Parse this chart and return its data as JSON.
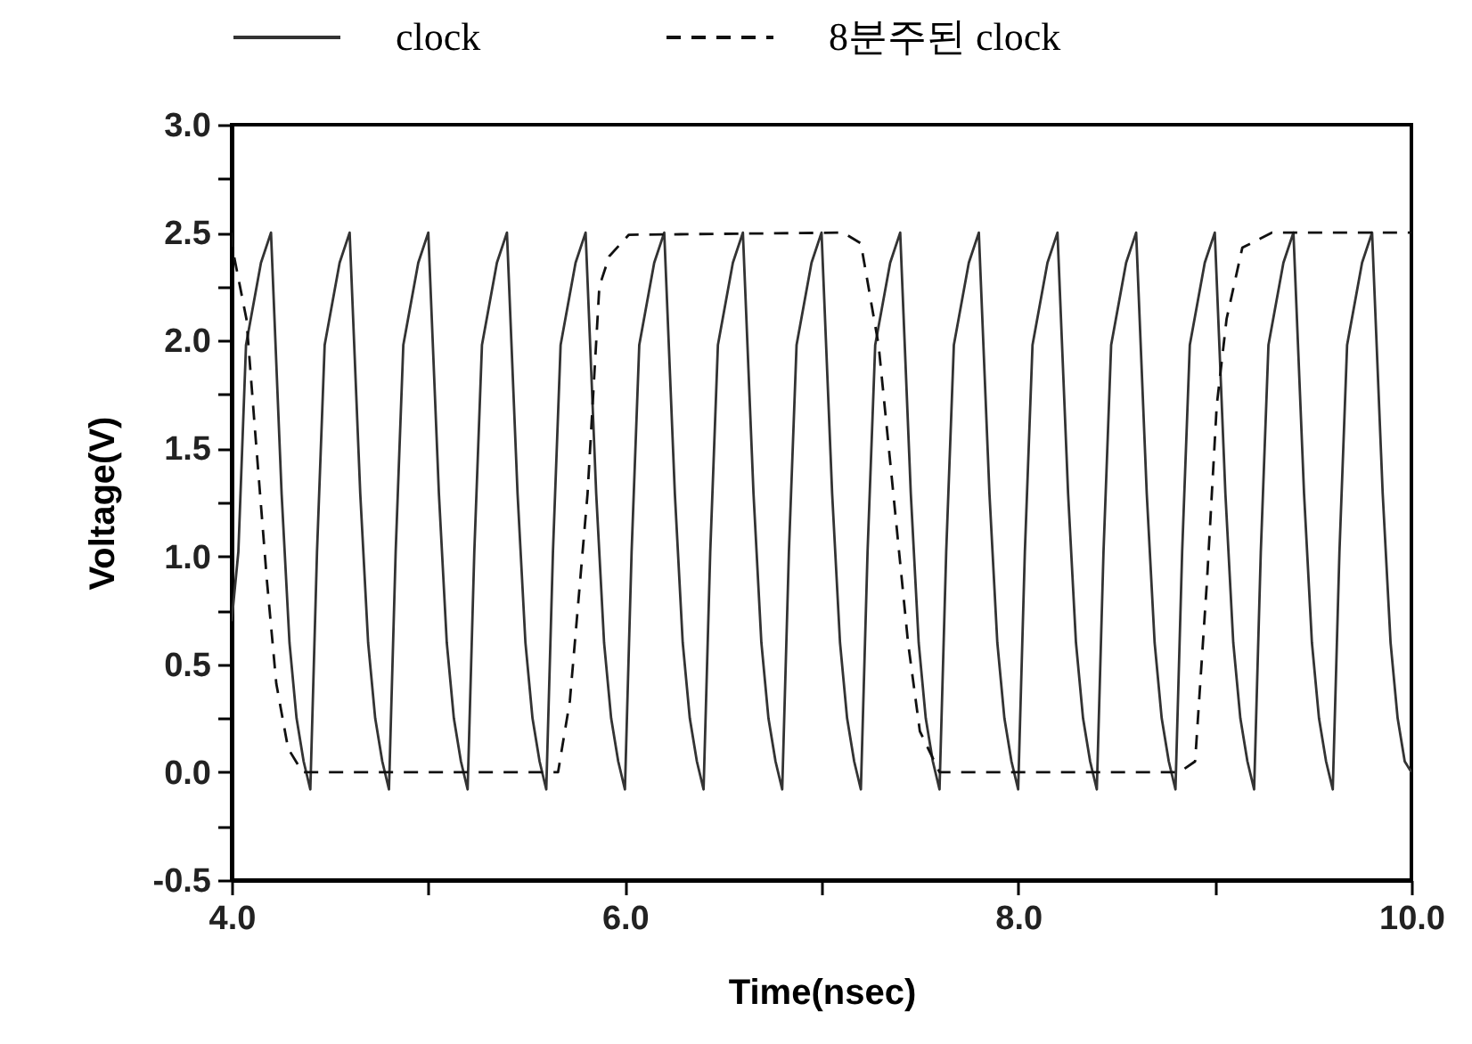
{
  "chart_data": {
    "type": "line",
    "xlabel": "Time(nsec)",
    "ylabel": "Voltage(V)",
    "legend": "top",
    "grid": false,
    "xlim": [
      4,
      10
    ],
    "ylim": [
      -0.5,
      3
    ],
    "xticks": [
      {
        "value": 4,
        "label": "4.0"
      },
      {
        "value": 5,
        "label": null
      },
      {
        "value": 6,
        "label": "6.0"
      },
      {
        "value": 7,
        "label": null
      },
      {
        "value": 8,
        "label": "8.0"
      },
      {
        "value": 9,
        "label": null
      },
      {
        "value": 10,
        "label": "10.0"
      }
    ],
    "yticks": [
      {
        "value": -0.5,
        "label": "-0.5"
      },
      {
        "value": -0.25,
        "label": null
      },
      {
        "value": 0,
        "label": "0.0"
      },
      {
        "value": 0.25,
        "label": null
      },
      {
        "value": 0.5,
        "label": "0.5"
      },
      {
        "value": 0.75,
        "label": null
      },
      {
        "value": 1,
        "label": "1.0"
      },
      {
        "value": 1.25,
        "label": null
      },
      {
        "value": 1.5,
        "label": "1.5"
      },
      {
        "value": 1.75,
        "label": null
      },
      {
        "value": 2,
        "label": "2.0"
      },
      {
        "value": 2.25,
        "label": null
      },
      {
        "value": 2.5,
        "label": "2.5"
      },
      {
        "value": 2.75,
        "label": null
      },
      {
        "value": 3,
        "label": "3.0"
      }
    ],
    "series": [
      {
        "name": "clock",
        "color": "#333333",
        "line_style": "solid",
        "x": [
          4.0,
          4.034,
          4.073,
          4.149,
          4.2,
          4.254,
          4.294,
          4.33,
          4.366,
          4.4,
          4.434,
          4.473,
          4.549,
          4.6,
          4.654,
          4.694,
          4.73,
          4.766,
          4.8,
          4.834,
          4.873,
          4.949,
          5.0,
          5.054,
          5.094,
          5.13,
          5.166,
          5.2,
          5.234,
          5.273,
          5.349,
          5.4,
          5.454,
          5.494,
          5.53,
          5.566,
          5.6,
          5.634,
          5.673,
          5.749,
          5.8,
          5.854,
          5.894,
          5.93,
          5.966,
          6.0,
          6.034,
          6.073,
          6.149,
          6.2,
          6.254,
          6.294,
          6.33,
          6.366,
          6.4,
          6.434,
          6.473,
          6.549,
          6.6,
          6.654,
          6.694,
          6.73,
          6.766,
          6.8,
          6.834,
          6.873,
          6.949,
          7.0,
          7.054,
          7.094,
          7.13,
          7.166,
          7.2,
          7.234,
          7.273,
          7.349,
          7.4,
          7.454,
          7.494,
          7.53,
          7.566,
          7.6,
          7.634,
          7.673,
          7.749,
          7.8,
          7.854,
          7.894,
          7.93,
          7.966,
          8.0,
          8.034,
          8.073,
          8.149,
          8.2,
          8.254,
          8.294,
          8.33,
          8.366,
          8.4,
          8.434,
          8.473,
          8.549,
          8.6,
          8.654,
          8.694,
          8.73,
          8.766,
          8.8,
          8.834,
          8.873,
          8.949,
          9.0,
          9.054,
          9.094,
          9.13,
          9.166,
          9.2,
          9.234,
          9.273,
          9.349,
          9.4,
          9.454,
          9.494,
          9.53,
          9.566,
          9.6,
          9.634,
          9.673,
          9.749,
          9.8,
          9.854,
          9.894,
          9.93,
          9.966,
          10.0
        ],
        "values": [
          0.7,
          1.02,
          1.98,
          2.36,
          2.5,
          1.29,
          0.6,
          0.25,
          0.05,
          -0.08,
          1.02,
          1.98,
          2.36,
          2.5,
          1.29,
          0.6,
          0.25,
          0.05,
          -0.08,
          1.02,
          1.98,
          2.36,
          2.5,
          1.29,
          0.6,
          0.25,
          0.05,
          -0.08,
          1.02,
          1.98,
          2.36,
          2.5,
          1.29,
          0.6,
          0.25,
          0.05,
          -0.08,
          1.02,
          1.98,
          2.36,
          2.5,
          1.29,
          0.6,
          0.25,
          0.05,
          -0.08,
          1.02,
          1.98,
          2.36,
          2.5,
          1.29,
          0.6,
          0.25,
          0.05,
          -0.08,
          1.02,
          1.98,
          2.36,
          2.5,
          1.29,
          0.6,
          0.25,
          0.05,
          -0.08,
          1.02,
          1.98,
          2.36,
          2.5,
          1.29,
          0.6,
          0.25,
          0.05,
          -0.08,
          1.02,
          1.98,
          2.36,
          2.5,
          1.29,
          0.6,
          0.25,
          0.05,
          -0.08,
          1.02,
          1.98,
          2.36,
          2.5,
          1.29,
          0.6,
          0.25,
          0.05,
          -0.08,
          1.02,
          1.98,
          2.36,
          2.5,
          1.29,
          0.6,
          0.25,
          0.05,
          -0.08,
          1.02,
          1.98,
          2.36,
          2.5,
          1.29,
          0.6,
          0.25,
          0.05,
          -0.08,
          1.02,
          1.98,
          2.36,
          2.5,
          1.29,
          0.6,
          0.25,
          0.05,
          -0.08,
          1.02,
          1.98,
          2.36,
          2.5,
          1.29,
          0.6,
          0.25,
          0.05,
          -0.08,
          1.02,
          1.98,
          2.36,
          2.5,
          1.29,
          0.6,
          0.25,
          0.05,
          0.0
        ]
      },
      {
        "name": "8분주된 clock",
        "color": "#111111",
        "line_style": "dashed",
        "x": [
          4.0,
          4.01,
          4.075,
          4.12,
          4.18,
          4.227,
          4.287,
          4.36,
          5.66,
          5.72,
          5.81,
          5.87,
          5.92,
          6.02,
          7.11,
          7.2,
          7.29,
          7.35,
          7.44,
          7.5,
          7.6,
          8.82,
          8.9,
          8.96,
          9.01,
          9.06,
          9.14,
          9.29,
          10.0
        ],
        "values": [
          2.5,
          2.4,
          2.1,
          1.57,
          0.88,
          0.41,
          0.11,
          0.0,
          0.0,
          0.33,
          1.29,
          2.25,
          2.39,
          2.49,
          2.5,
          2.45,
          1.98,
          1.43,
          0.6,
          0.19,
          0.0,
          0.0,
          0.05,
          0.88,
          1.7,
          2.1,
          2.43,
          2.5,
          2.5
        ]
      }
    ]
  }
}
